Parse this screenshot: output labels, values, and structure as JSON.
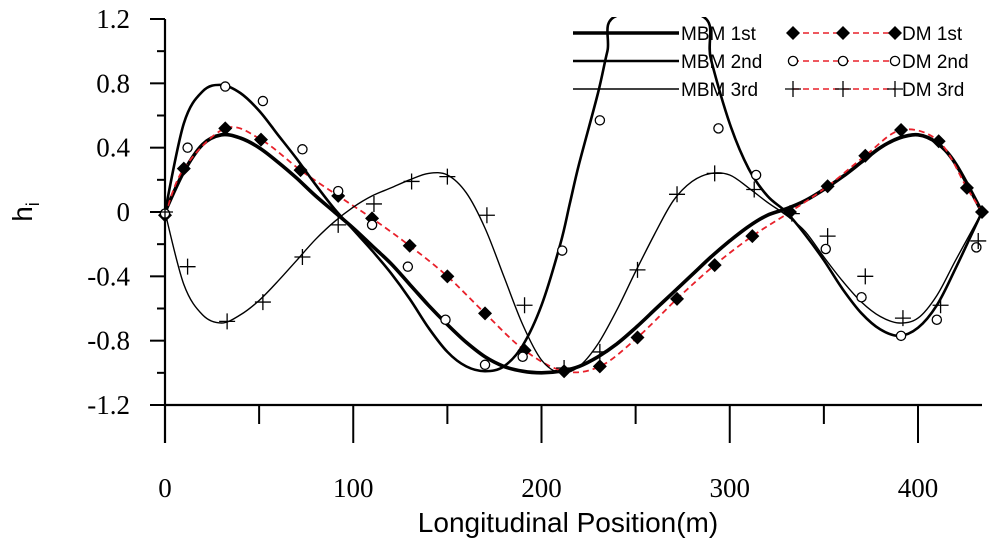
{
  "chart_data": {
    "type": "line",
    "title": "",
    "xlabel": "Longitudinal Position(m)",
    "ylabel": "h",
    "ylabel_sub": "i",
    "xlim": [
      0,
      434
    ],
    "ylim": [
      -1.2,
      1.2
    ],
    "xticks": [
      0,
      100,
      200,
      300,
      400
    ],
    "xtick_labels": [
      "0",
      "100",
      "200",
      "300",
      "400"
    ],
    "yticks": [
      -1.2,
      -0.8,
      -0.4,
      0,
      0.4,
      0.8,
      1.2
    ],
    "ytick_labels": [
      "-1.2",
      "-0.8",
      "-0.4",
      "0",
      "0.4",
      "0.8",
      "1.2"
    ],
    "grid": false,
    "legend_position": "top-right",
    "colors": {
      "mbm": "#000000",
      "dm": "#e8202a"
    },
    "series": [
      {
        "name": "MBM 1st",
        "method": "MBM",
        "mode": 1,
        "style": "solid-thick",
        "x": [
          0,
          10,
          20,
          30,
          40,
          50,
          60,
          70,
          80,
          90,
          100,
          110,
          120,
          130,
          140,
          150,
          160,
          170,
          180,
          190,
          200,
          210,
          220,
          230,
          240,
          250,
          260,
          270,
          280,
          290,
          300,
          310,
          320,
          330,
          340,
          350,
          360,
          370,
          380,
          390,
          400,
          410,
          420,
          434
        ],
        "y": [
          0,
          0.25,
          0.42,
          0.48,
          0.46,
          0.4,
          0.31,
          0.21,
          0.1,
          0.0,
          -0.1,
          -0.21,
          -0.32,
          -0.45,
          -0.58,
          -0.7,
          -0.81,
          -0.9,
          -0.96,
          -0.99,
          -1.0,
          -0.99,
          -0.96,
          -0.9,
          -0.82,
          -0.72,
          -0.61,
          -0.5,
          -0.39,
          -0.28,
          -0.18,
          -0.09,
          -0.02,
          0.02,
          0.07,
          0.14,
          0.22,
          0.31,
          0.4,
          0.46,
          0.48,
          0.43,
          0.3,
          0.0
        ]
      },
      {
        "name": "DM 1st",
        "method": "DM",
        "mode": 1,
        "style": "dashed",
        "marker": "filled-diamond",
        "x": [
          0,
          10,
          32,
          51,
          72,
          92,
          110,
          130,
          150,
          170,
          191,
          212,
          231,
          251,
          272,
          292,
          312,
          332,
          352,
          372,
          391,
          411,
          426,
          434
        ],
        "y": [
          -0.02,
          0.27,
          0.52,
          0.45,
          0.26,
          0.1,
          -0.04,
          -0.21,
          -0.4,
          -0.63,
          -0.86,
          -0.99,
          -0.96,
          -0.78,
          -0.54,
          -0.33,
          -0.15,
          0.0,
          0.16,
          0.35,
          0.51,
          0.44,
          0.15,
          0.0
        ]
      },
      {
        "name": "MBM 2nd",
        "method": "MBM",
        "mode": 2,
        "style": "solid-medium",
        "x": [
          0,
          10,
          20,
          30,
          40,
          50,
          60,
          70,
          80,
          90,
          100,
          110,
          120,
          130,
          140,
          150,
          160,
          170,
          180,
          190,
          200,
          210,
          215,
          220,
          230,
          235,
          240,
          285,
          290,
          300,
          310,
          320,
          330,
          340,
          350,
          360,
          370,
          380,
          390,
          400,
          410,
          420,
          434
        ],
        "y": [
          0,
          0.55,
          0.75,
          0.79,
          0.74,
          0.63,
          0.48,
          0.33,
          0.17,
          0.02,
          -0.11,
          -0.24,
          -0.38,
          -0.54,
          -0.72,
          -0.87,
          -0.96,
          -0.99,
          -0.96,
          -0.83,
          -0.58,
          -0.2,
          0.05,
          0.3,
          0.74,
          1.0,
          1.22,
          1.22,
          0.95,
          0.55,
          0.27,
          0.1,
          0.0,
          -0.14,
          -0.3,
          -0.48,
          -0.63,
          -0.73,
          -0.77,
          -0.72,
          -0.58,
          -0.35,
          0.0
        ]
      },
      {
        "name": "DM 2nd",
        "method": "DM",
        "mode": 2,
        "style": "dashed",
        "marker": "open-circle",
        "x": [
          0,
          12,
          32,
          52,
          73,
          92,
          110,
          129,
          149,
          170,
          190,
          211,
          231,
          294,
          314,
          351,
          370,
          391,
          410,
          431
        ],
        "y": [
          -0.01,
          0.4,
          0.78,
          0.69,
          0.39,
          0.13,
          -0.08,
          -0.34,
          -0.67,
          -0.95,
          -0.9,
          -0.24,
          0.57,
          0.52,
          0.23,
          -0.23,
          -0.53,
          -0.77,
          -0.67,
          -0.22
        ]
      },
      {
        "name": "MBM 3rd",
        "method": "MBM",
        "mode": 3,
        "style": "solid-thin",
        "x": [
          0,
          10,
          20,
          30,
          40,
          50,
          60,
          70,
          80,
          90,
          100,
          110,
          120,
          130,
          140,
          150,
          160,
          170,
          180,
          190,
          200,
          210,
          220,
          230,
          240,
          250,
          260,
          270,
          280,
          290,
          300,
          310,
          320,
          330,
          340,
          350,
          360,
          370,
          380,
          390,
          400,
          410,
          420,
          434
        ],
        "y": [
          0,
          -0.45,
          -0.64,
          -0.69,
          -0.64,
          -0.55,
          -0.43,
          -0.3,
          -0.17,
          -0.06,
          0.03,
          0.1,
          0.15,
          0.2,
          0.24,
          0.23,
          0.12,
          -0.1,
          -0.4,
          -0.7,
          -0.92,
          -1.0,
          -0.96,
          -0.82,
          -0.61,
          -0.37,
          -0.14,
          0.07,
          0.19,
          0.24,
          0.23,
          0.15,
          0.06,
          -0.02,
          -0.12,
          -0.28,
          -0.43,
          -0.56,
          -0.65,
          -0.69,
          -0.66,
          -0.52,
          -0.3,
          0.0
        ]
      },
      {
        "name": "DM 3rd",
        "method": "DM",
        "mode": 3,
        "style": "dashed",
        "marker": "plus",
        "x": [
          0,
          12,
          33,
          52,
          73,
          92,
          111,
          131,
          150,
          171,
          191,
          212,
          231,
          251,
          272,
          292,
          313,
          333,
          352,
          372,
          392,
          412,
          432
        ],
        "y": [
          0,
          -0.34,
          -0.68,
          -0.56,
          -0.28,
          -0.08,
          0.05,
          0.19,
          0.22,
          -0.02,
          -0.58,
          -0.97,
          -0.87,
          -0.36,
          0.11,
          0.24,
          0.14,
          -0.01,
          -0.15,
          -0.4,
          -0.66,
          -0.58,
          -0.18
        ]
      }
    ]
  }
}
